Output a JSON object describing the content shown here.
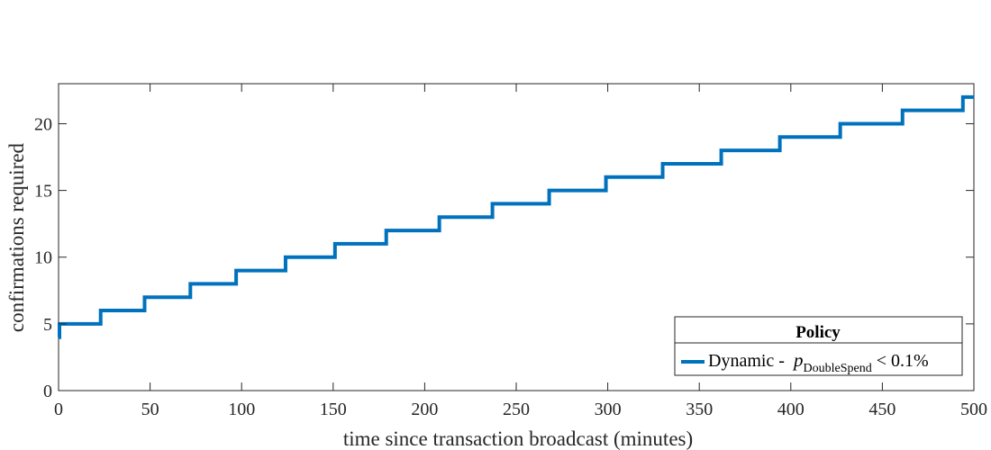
{
  "chart_data": {
    "type": "line",
    "step": true,
    "xlabel": "time since transaction broadcast (minutes)",
    "ylabel": "confirmations required",
    "xlim": [
      0,
      500
    ],
    "ylim": [
      0,
      23
    ],
    "xticks": [
      0,
      50,
      100,
      150,
      200,
      250,
      300,
      350,
      400,
      450,
      500
    ],
    "yticks": [
      0,
      5,
      10,
      15,
      20
    ],
    "grid": false,
    "box": true,
    "legend": {
      "title": "Policy",
      "placement": "bottom-right",
      "entries": [
        {
          "name_main": "Dynamic -  ",
          "name_var": "p",
          "name_sub": "DoubleSpend",
          "name_tail": " < 0.1%",
          "color": "#0072BD"
        }
      ]
    },
    "series": [
      {
        "color": "#0072BD",
        "steps": [
          {
            "x": 0,
            "y": 4
          },
          {
            "x": 0.5,
            "y": 5
          },
          {
            "x": 23,
            "y": 6
          },
          {
            "x": 47,
            "y": 7
          },
          {
            "x": 72,
            "y": 8
          },
          {
            "x": 97,
            "y": 9
          },
          {
            "x": 124,
            "y": 10
          },
          {
            "x": 151,
            "y": 11
          },
          {
            "x": 179,
            "y": 12
          },
          {
            "x": 208,
            "y": 13
          },
          {
            "x": 237,
            "y": 14
          },
          {
            "x": 268,
            "y": 15
          },
          {
            "x": 299,
            "y": 16
          },
          {
            "x": 330,
            "y": 17
          },
          {
            "x": 362,
            "y": 18
          },
          {
            "x": 394,
            "y": 19
          },
          {
            "x": 427,
            "y": 20
          },
          {
            "x": 461,
            "y": 21
          },
          {
            "x": 494,
            "y": 22
          }
        ],
        "x_end": 500
      }
    ]
  }
}
